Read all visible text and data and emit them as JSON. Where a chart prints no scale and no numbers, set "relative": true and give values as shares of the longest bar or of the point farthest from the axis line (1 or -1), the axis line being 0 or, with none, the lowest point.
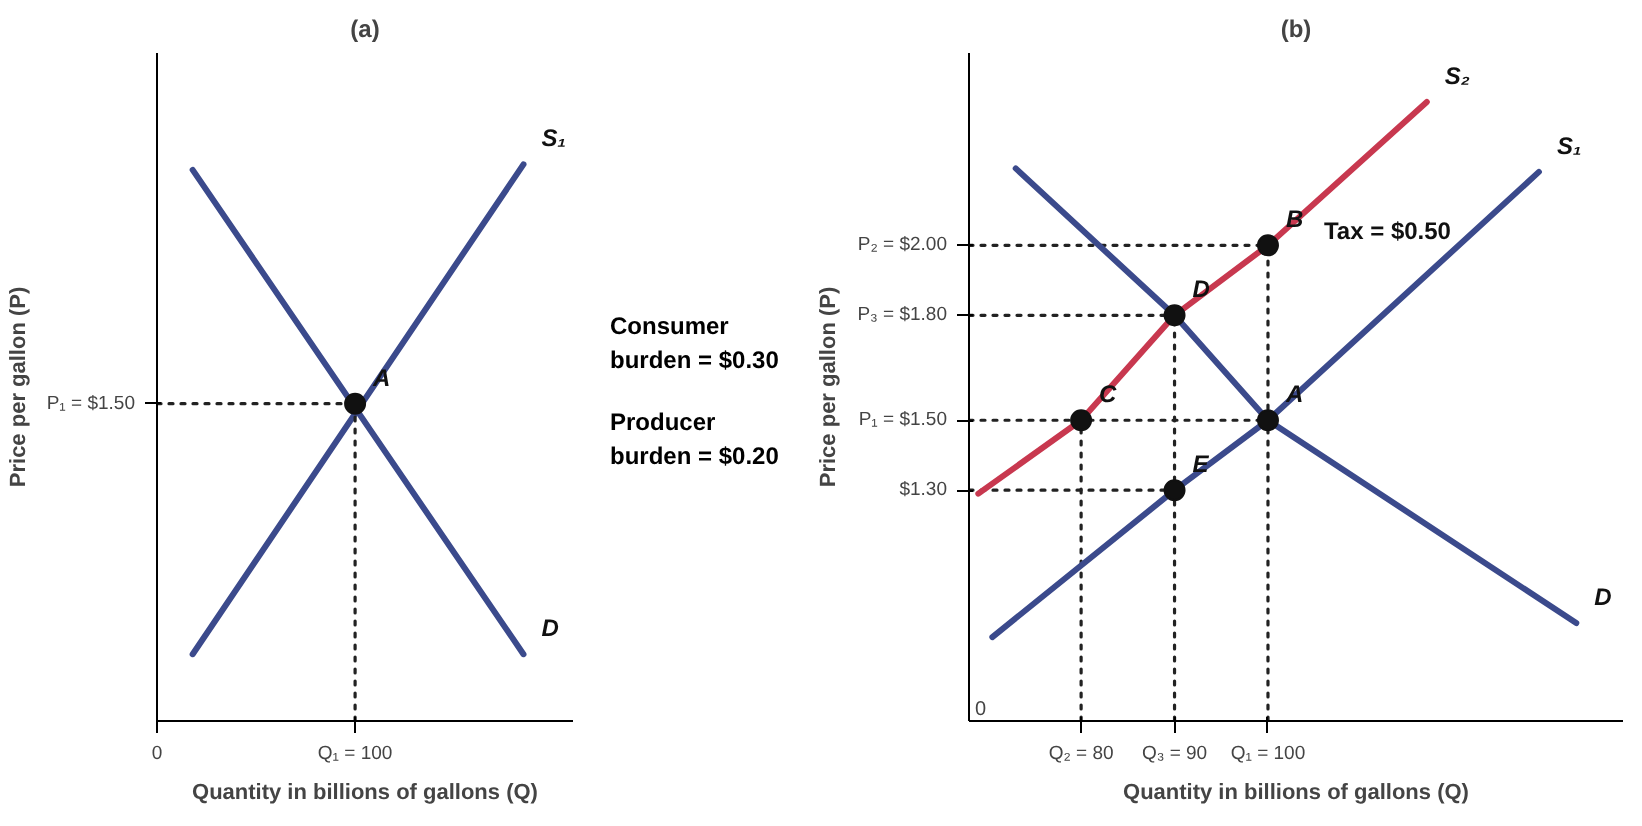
{
  "chart_data": [
    {
      "type": "line",
      "title": "(a)",
      "xlabel": "Quantity in billions of gallons (Q)",
      "ylabel": "Price per gallon (P)",
      "relative": true,
      "xlim": [
        0,
        210
      ],
      "xticks": [
        0,
        {
          "value": 100,
          "label": "Q₁ = 100"
        }
      ],
      "grid": false,
      "series": [
        {
          "type": "line",
          "color": "#3b4a8c",
          "x": [
            18,
            185
          ],
          "values": [
            0.12,
            1.0
          ]
        },
        {
          "type": "line",
          "color": "#3b4a8c",
          "x": [
            18,
            185
          ],
          "values": [
            0.99,
            0.12
          ]
        },
        {
          "type": "line",
          "line_style": "dotted",
          "color": "#222222",
          "x": [
            0,
            100
          ],
          "values": [
            0.57,
            0.57
          ]
        },
        {
          "type": "line",
          "line_style": "dotted",
          "color": "#222222",
          "x": [
            100,
            100
          ],
          "values": [
            0,
            0.57
          ]
        },
        {
          "type": "scatter",
          "marker": "circle",
          "color": "#111111",
          "x": [
            100
          ],
          "values": [
            0.57
          ]
        }
      ],
      "annotations": [
        {
          "text": "A",
          "x": 100,
          "y": 0.57
        },
        {
          "text": "S₁",
          "x": 185,
          "y": 1.0
        },
        {
          "text": "D",
          "x": 185,
          "y": 0.12
        },
        {
          "text": "P₁ = $1.50",
          "x": 0,
          "y": 0.57
        }
      ]
    },
    {
      "type": "line",
      "title": "(b)",
      "xlabel": "Quantity in billions of gallons (Q)",
      "ylabel": "Price per gallon (P)",
      "xlim": [
        68,
        138
      ],
      "ylim": [
        0.64,
        2.55
      ],
      "xticks": [
        {
          "value": 80,
          "label": "Q₂ = 80"
        },
        {
          "value": 90,
          "label": "Q₃ = 90"
        },
        {
          "value": 100,
          "label": "Q₁ = 100"
        }
      ],
      "yticks": [
        {
          "value": 1.3,
          "label": "$1.30"
        },
        {
          "value": 1.5,
          "label": "P₁ = $1.50"
        },
        {
          "value": 1.8,
          "label": "P₃ = $1.80"
        },
        {
          "value": 2.0,
          "label": "P₂ = $2.00"
        }
      ],
      "grid": false,
      "series": [
        {
          "type": "line",
          "line_style": "dotted",
          "color": "#222222",
          "x": [
            68,
            100
          ],
          "values": [
            2.0,
            2.0
          ]
        },
        {
          "type": "line",
          "line_style": "dotted",
          "color": "#222222",
          "x": [
            68,
            90
          ],
          "values": [
            1.8,
            1.8
          ]
        },
        {
          "type": "line",
          "line_style": "dotted",
          "color": "#222222",
          "x": [
            68,
            100
          ],
          "values": [
            1.5,
            1.5
          ]
        },
        {
          "type": "line",
          "line_style": "dotted",
          "color": "#222222",
          "x": [
            68,
            90
          ],
          "values": [
            1.3,
            1.3
          ]
        },
        {
          "type": "line",
          "line_style": "dotted",
          "color": "#222222",
          "x": [
            100,
            100
          ],
          "values": [
            0.64,
            2.0
          ]
        },
        {
          "type": "line",
          "line_style": "dotted",
          "color": "#222222",
          "x": [
            90,
            90
          ],
          "values": [
            0.64,
            1.8
          ]
        },
        {
          "type": "line",
          "line_style": "dotted",
          "color": "#222222",
          "x": [
            80,
            80
          ],
          "values": [
            0.64,
            1.5
          ]
        },
        {
          "type": "line",
          "color": "#3b4a8c",
          "x": [
            70.5,
            90,
            100,
            129
          ],
          "values": [
            0.88,
            1.3,
            1.5,
            2.21
          ]
        },
        {
          "type": "line",
          "color": "#3b4a8c",
          "x": [
            73,
            90,
            100,
            133
          ],
          "values": [
            2.22,
            1.8,
            1.5,
            0.92
          ]
        },
        {
          "type": "line",
          "color": "#c8384f",
          "x": [
            69,
            80,
            90,
            100,
            117
          ],
          "values": [
            1.29,
            1.5,
            1.8,
            2.0,
            2.41
          ]
        },
        {
          "type": "scatter",
          "marker": "circle",
          "color": "#111111",
          "x": [
            100,
            100,
            80,
            90,
            90
          ],
          "values": [
            1.5,
            2.0,
            1.5,
            1.8,
            1.3
          ]
        }
      ],
      "annotations": [
        {
          "text": "A",
          "x": 100,
          "y": 1.5
        },
        {
          "text": "B",
          "x": 100,
          "y": 2.0
        },
        {
          "text": "C",
          "x": 80,
          "y": 1.5
        },
        {
          "text": "D",
          "x": 90,
          "y": 1.8
        },
        {
          "text": "E",
          "x": 90,
          "y": 1.3
        },
        {
          "text": "S₁",
          "x": 129,
          "y": 2.21
        },
        {
          "text": "S₂",
          "x": 117,
          "y": 2.41
        },
        {
          "text": "D",
          "x": 133,
          "y": 0.92
        },
        {
          "text": "Tax = $0.50",
          "x": 100,
          "y": 2.0
        },
        "0",
        "Consumer burden = $0.30",
        "Producer burden = $0.20"
      ]
    }
  ]
}
